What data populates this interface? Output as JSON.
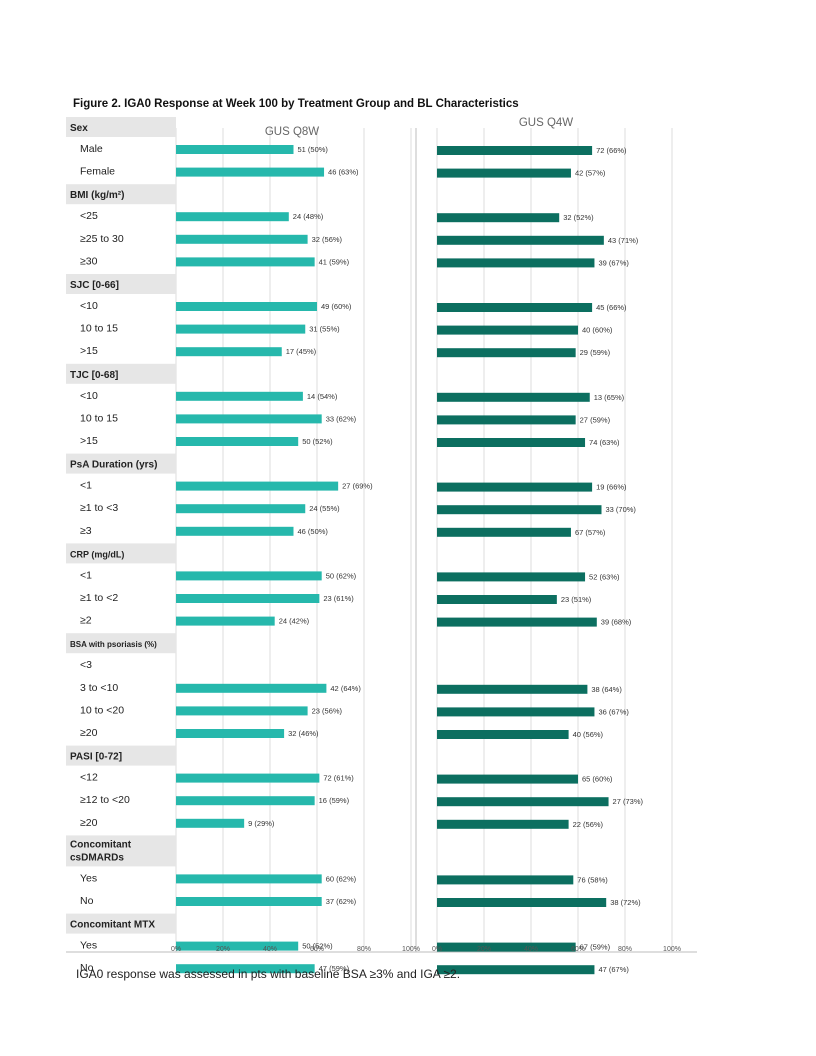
{
  "figure_title": "Figure 2. IGA0 Response at Week 100 by Treatment Group and BL Characteristics",
  "footnote": "IGA0 response was assessed in pts with baseline BSA ≥3% and IGA ≥2.",
  "colors": {
    "q8w": "#26b8ac",
    "q4w": "#0c6f60",
    "header": "#e6e6e6",
    "grid": "#d4d4d4"
  },
  "chart_data": {
    "type": "bar",
    "orientation": "horizontal",
    "title": "Figure 2. IGA0 Response at Week 100 by Treatment Group and BL Characteristics",
    "xlim": [
      0,
      100
    ],
    "x_ticks": [
      "0%",
      "20%",
      "40%",
      "60%",
      "80%",
      "100%"
    ],
    "panels": [
      {
        "name": "GUS Q8W",
        "color": "#26b8ac"
      },
      {
        "name": "GUS Q4W",
        "color": "#0c6f60"
      }
    ],
    "groups": [
      {
        "header": "Sex",
        "rows": [
          {
            "label": "Male",
            "q8w": {
              "value": 50,
              "text": "51 (50%)"
            },
            "q4w": {
              "value": 66,
              "text": "72 (66%)"
            }
          },
          {
            "label": "Female",
            "q8w": {
              "value": 63,
              "text": "46 (63%)"
            },
            "q4w": {
              "value": 57,
              "text": "42 (57%)"
            }
          }
        ]
      },
      {
        "header": "BMI (kg/m²)",
        "rows": [
          {
            "label": "<25",
            "q8w": {
              "value": 48,
              "text": "24 (48%)"
            },
            "q4w": {
              "value": 52,
              "text": "32 (52%)"
            }
          },
          {
            "label": "≥25 to 30",
            "q8w": {
              "value": 56,
              "text": "32 (56%)"
            },
            "q4w": {
              "value": 71,
              "text": "43 (71%)"
            }
          },
          {
            "label": "≥30",
            "q8w": {
              "value": 59,
              "text": "41 (59%)"
            },
            "q4w": {
              "value": 67,
              "text": "39 (67%)"
            }
          }
        ]
      },
      {
        "header": "SJC [0-66]",
        "rows": [
          {
            "label": "<10",
            "q8w": {
              "value": 60,
              "text": "49 (60%)"
            },
            "q4w": {
              "value": 66,
              "text": "45 (66%)"
            }
          },
          {
            "label": "10 to 15",
            "q8w": {
              "value": 55,
              "text": "31 (55%)"
            },
            "q4w": {
              "value": 60,
              "text": "40 (60%)"
            }
          },
          {
            "label": ">15",
            "q8w": {
              "value": 45,
              "text": "17 (45%)"
            },
            "q4w": {
              "value": 59,
              "text": "29 (59%)"
            }
          }
        ]
      },
      {
        "header": "TJC [0-68]",
        "rows": [
          {
            "label": "<10",
            "q8w": {
              "value": 54,
              "text": "14 (54%)"
            },
            "q4w": {
              "value": 65,
              "text": "13 (65%)"
            }
          },
          {
            "label": "10 to 15",
            "q8w": {
              "value": 62,
              "text": "33 (62%)"
            },
            "q4w": {
              "value": 59,
              "text": "27 (59%)"
            }
          },
          {
            "label": ">15",
            "q8w": {
              "value": 52,
              "text": "50 (52%)"
            },
            "q4w": {
              "value": 63,
              "text": "74 (63%)"
            }
          }
        ]
      },
      {
        "header": "PsA Duration (yrs)",
        "rows": [
          {
            "label": "<1",
            "q8w": {
              "value": 69,
              "text": "27 (69%)"
            },
            "q4w": {
              "value": 66,
              "text": "19 (66%)"
            }
          },
          {
            "label": "≥1 to <3",
            "q8w": {
              "value": 55,
              "text": "24 (55%)"
            },
            "q4w": {
              "value": 70,
              "text": "33 (70%)"
            }
          },
          {
            "label": "≥3",
            "q8w": {
              "value": 50,
              "text": "46 (50%)"
            },
            "q4w": {
              "value": 57,
              "text": "67 (57%)"
            }
          }
        ]
      },
      {
        "header": "CRP (mg/dL)",
        "rows": [
          {
            "label": "<1",
            "q8w": {
              "value": 62,
              "text": "50 (62%)"
            },
            "q4w": {
              "value": 63,
              "text": "52 (63%)"
            }
          },
          {
            "label": "≥1 to <2",
            "q8w": {
              "value": 61,
              "text": "23 (61%)"
            },
            "q4w": {
              "value": 51,
              "text": "23 (51%)"
            }
          },
          {
            "label": "≥2",
            "q8w": {
              "value": 42,
              "text": "24 (42%)"
            },
            "q4w": {
              "value": 68,
              "text": "39 (68%)"
            }
          }
        ]
      },
      {
        "header": "BSA with psoriasis (%)",
        "rows": [
          {
            "label": "<3",
            "q8w": null,
            "q4w": null
          },
          {
            "label": "3 to <10",
            "q8w": {
              "value": 64,
              "text": "42 (64%)"
            },
            "q4w": {
              "value": 64,
              "text": "38 (64%)"
            }
          },
          {
            "label": "10 to <20",
            "q8w": {
              "value": 56,
              "text": "23 (56%)"
            },
            "q4w": {
              "value": 67,
              "text": "36 (67%)"
            }
          },
          {
            "label": "≥20",
            "q8w": {
              "value": 46,
              "text": "32 (46%)"
            },
            "q4w": {
              "value": 56,
              "text": "40 (56%)"
            }
          }
        ]
      },
      {
        "header": "PASI [0-72]",
        "rows": [
          {
            "label": "<12",
            "q8w": {
              "value": 61,
              "text": "72 (61%)"
            },
            "q4w": {
              "value": 60,
              "text": "65 (60%)"
            }
          },
          {
            "label": "≥12 to <20",
            "q8w": {
              "value": 59,
              "text": "16 (59%)"
            },
            "q4w": {
              "value": 73,
              "text": "27 (73%)"
            }
          },
          {
            "label": "≥20",
            "q8w": {
              "value": 29,
              "text": "9 (29%)"
            },
            "q4w": {
              "value": 56,
              "text": "22 (56%)"
            }
          }
        ]
      },
      {
        "header": "Concomitant csDMARDs",
        "rows": [
          {
            "label": "Yes",
            "q8w": {
              "value": 62,
              "text": "60 (62%)"
            },
            "q4w": {
              "value": 58,
              "text": "76 (58%)"
            }
          },
          {
            "label": "No",
            "q8w": {
              "value": 62,
              "text": "37 (62%)"
            },
            "q4w": {
              "value": 72,
              "text": "38 (72%)"
            }
          }
        ]
      },
      {
        "header": "Concomitant MTX",
        "rows": [
          {
            "label": "Yes",
            "q8w": {
              "value": 52,
              "text": "50 (52%)"
            },
            "q4w": {
              "value": 59,
              "text": "67 (59%)"
            }
          },
          {
            "label": "No",
            "q8w": {
              "value": 59,
              "text": "47 (59%)"
            },
            "q4w": {
              "value": 67,
              "text": "47 (67%)"
            }
          }
        ]
      }
    ]
  }
}
